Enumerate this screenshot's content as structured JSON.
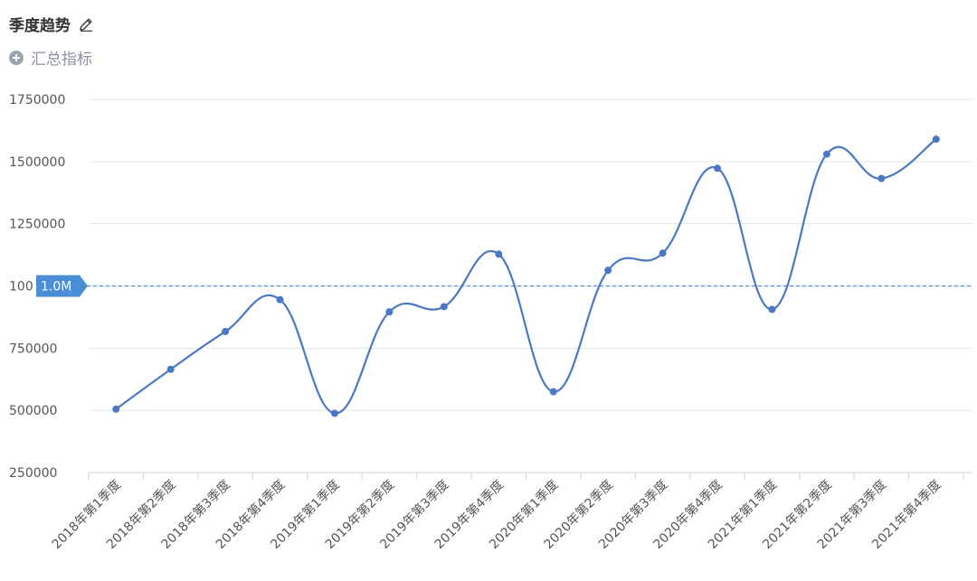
{
  "header": {
    "title": "季度趋势",
    "metric_button_label": "汇总指标"
  },
  "icons": {
    "edit": "pencil-icon",
    "add_metric": "plus-circle-icon"
  },
  "colors": {
    "line": "#4a78c2",
    "grid": "#e3e6ea",
    "reference": "#4a8fd6",
    "reference_label_bg": "#4a8fd6"
  },
  "reference_line": {
    "value": 1000000,
    "label": "1.0M",
    "axis_text": "100"
  },
  "chart_data": {
    "type": "line",
    "title": "季度趋势",
    "categories": [
      "2018年第1季度",
      "2018年第2季度",
      "2018年第3季度",
      "2018年第4季度",
      "2019年第1季度",
      "2019年第2季度",
      "2019年第3季度",
      "2019年第4季度",
      "2020年第1季度",
      "2020年第2季度",
      "2020年第3季度",
      "2020年第4季度",
      "2021年第1季度",
      "2021年第2季度",
      "2021年第3季度",
      "2021年第4季度"
    ],
    "series": [
      {
        "values": [
          505000,
          665000,
          817000,
          945000,
          488000,
          896000,
          917000,
          1128000,
          575000,
          1063000,
          1132000,
          1473000,
          906000,
          1530000,
          1432000,
          1590000
        ]
      }
    ],
    "yticks": [
      250000,
      500000,
      750000,
      1250000,
      1500000,
      1750000
    ],
    "ylim": [
      250000,
      1750000
    ],
    "smooth": true,
    "grid": true,
    "legend": "none"
  }
}
